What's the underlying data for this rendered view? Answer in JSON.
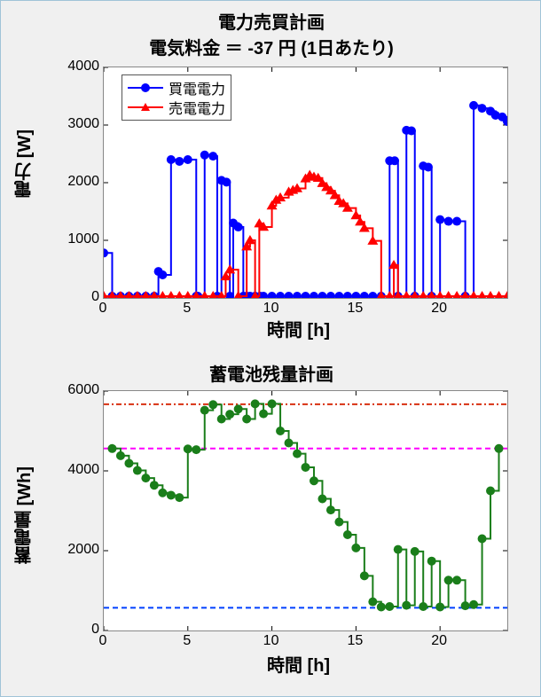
{
  "top_chart": {
    "type": "line+markers",
    "title_line1": "電力売買計画",
    "title_line2": "電気料金 ＝ -37 円 (1日あたり)",
    "title_fontsize": 20,
    "xlabel": "時間 [h]",
    "ylabel": "電力 [W]",
    "label_fontsize": 20,
    "xlim": [
      0,
      24
    ],
    "ylim": [
      0,
      4000
    ],
    "xticks": [
      0,
      5,
      10,
      15,
      20
    ],
    "yticks": [
      0,
      1000,
      2000,
      3000,
      4000
    ],
    "background_color": "#ffffff",
    "axis_color": "#888888",
    "tick_fontsize": 16,
    "legend": {
      "items": [
        "買電電力",
        "売電電力"
      ],
      "colors": [
        "#0000ff",
        "#ff0000"
      ],
      "markers": [
        "circle",
        "triangle"
      ],
      "position": "upper-left",
      "fontsize": 16
    },
    "series": [
      {
        "name": "buy",
        "label": "買電電力",
        "color": "#0000ff",
        "marker": "circle",
        "marker_size": 5,
        "line_width": 2,
        "x": [
          0,
          0.5,
          1,
          1.5,
          2,
          2.5,
          3,
          3.25,
          3.5,
          4,
          4.5,
          5,
          5.5,
          5.6,
          6,
          6.5,
          6.75,
          7,
          7.3,
          7.5,
          7.7,
          8,
          8.3,
          8.5,
          8.7,
          9,
          9.3,
          9.5,
          10,
          10.5,
          11,
          11.5,
          12,
          12.5,
          13,
          13.5,
          14,
          14.5,
          15,
          15.5,
          16,
          16.5,
          17,
          17.3,
          17.5,
          18,
          18.3,
          18.5,
          19,
          19.3,
          19.5,
          20,
          20.5,
          21,
          21.5,
          22,
          22.5,
          23,
          23.3,
          23.7,
          24
        ],
        "y": [
          780,
          30,
          30,
          30,
          30,
          30,
          30,
          460,
          400,
          2400,
          2370,
          2400,
          30,
          30,
          2480,
          2460,
          30,
          2040,
          2010,
          30,
          1300,
          1230,
          30,
          30,
          30,
          30,
          30,
          30,
          30,
          30,
          30,
          30,
          30,
          30,
          30,
          30,
          30,
          30,
          30,
          30,
          30,
          30,
          2380,
          2380,
          30,
          2910,
          2900,
          30,
          2290,
          2270,
          30,
          1360,
          1330,
          1330,
          30,
          3340,
          3290,
          3240,
          3170,
          3140,
          3060
        ]
      },
      {
        "name": "sell",
        "label": "売電電力",
        "color": "#ff0000",
        "marker": "triangle",
        "marker_size": 6,
        "line_width": 2,
        "x": [
          0,
          0.5,
          1,
          1.5,
          2,
          2.5,
          3,
          3.5,
          4,
          4.5,
          5,
          5.5,
          6,
          6.5,
          7,
          7.25,
          7.5,
          8,
          8.5,
          8.7,
          9,
          9.25,
          9.5,
          10,
          10.25,
          10.5,
          11,
          11.25,
          11.5,
          12,
          12.25,
          12.5,
          12.75,
          13,
          13.25,
          13.5,
          13.75,
          14,
          14.25,
          14.5,
          15,
          15.25,
          15.5,
          16,
          16.5,
          17,
          17.25,
          17.5,
          18,
          18.5,
          19,
          19.5,
          20,
          20.5,
          21,
          21.5,
          22,
          22.5,
          23,
          23.5,
          24
        ],
        "y": [
          30,
          30,
          30,
          30,
          30,
          30,
          30,
          30,
          30,
          30,
          30,
          30,
          30,
          30,
          30,
          370,
          490,
          30,
          890,
          1000,
          30,
          1290,
          1230,
          1600,
          1700,
          1740,
          1840,
          1870,
          1900,
          2070,
          2130,
          2100,
          2080,
          1990,
          1920,
          1860,
          1780,
          1680,
          1640,
          1560,
          1430,
          1320,
          1210,
          990,
          30,
          30,
          570,
          30,
          30,
          30,
          30,
          30,
          30,
          30,
          30,
          30,
          30,
          30,
          30,
          30,
          30
        ]
      }
    ]
  },
  "bottom_chart": {
    "type": "step",
    "title": "蓄電池残量計画",
    "title_fontsize": 20,
    "xlabel": "時間 [h]",
    "ylabel": "蓄電量 [Wh]",
    "label_fontsize": 20,
    "xlim": [
      0,
      24
    ],
    "ylim": [
      0,
      6000
    ],
    "xticks": [
      0,
      5,
      10,
      15,
      20
    ],
    "yticks": [
      0,
      2000,
      4000,
      6000
    ],
    "background_color": "#ffffff",
    "axis_color": "#888888",
    "tick_fontsize": 16,
    "reference_lines": [
      {
        "y": 5670,
        "color": "#d83010",
        "dash": "6,3,2,3",
        "width": 2
      },
      {
        "y": 4560,
        "color": "#ff00ff",
        "dash": "6,4",
        "width": 2
      },
      {
        "y": 570,
        "color": "#0040ff",
        "dash": "6,4",
        "width": 2
      }
    ],
    "series": {
      "name": "storage",
      "color": "#1a7e1a",
      "marker": "circle",
      "marker_size": 5,
      "line_width": 2,
      "x": [
        0.5,
        1,
        1.5,
        2,
        2.5,
        3,
        3.5,
        4,
        4.5,
        5,
        5.5,
        6,
        6.5,
        7,
        7.5,
        8,
        8.5,
        9,
        9.5,
        10,
        10.5,
        11,
        11.5,
        12,
        12.5,
        13,
        13.5,
        14,
        14.5,
        15,
        15.5,
        16,
        16.5,
        17,
        17.5,
        18,
        18.5,
        19,
        19.5,
        20,
        20.5,
        21,
        21.5,
        22,
        22.5,
        23,
        23.5
      ],
      "y": [
        4560,
        4380,
        4190,
        4010,
        3820,
        3640,
        3450,
        3390,
        3330,
        4550,
        4530,
        5520,
        5660,
        5300,
        5420,
        5550,
        5300,
        5680,
        5430,
        5680,
        5000,
        4700,
        4430,
        4090,
        3750,
        3300,
        3020,
        2720,
        2400,
        2070,
        1370,
        720,
        590,
        600,
        2030,
        630,
        1980,
        600,
        1740,
        590,
        1260,
        1260,
        620,
        650,
        2300,
        3500,
        4560
      ]
    }
  }
}
